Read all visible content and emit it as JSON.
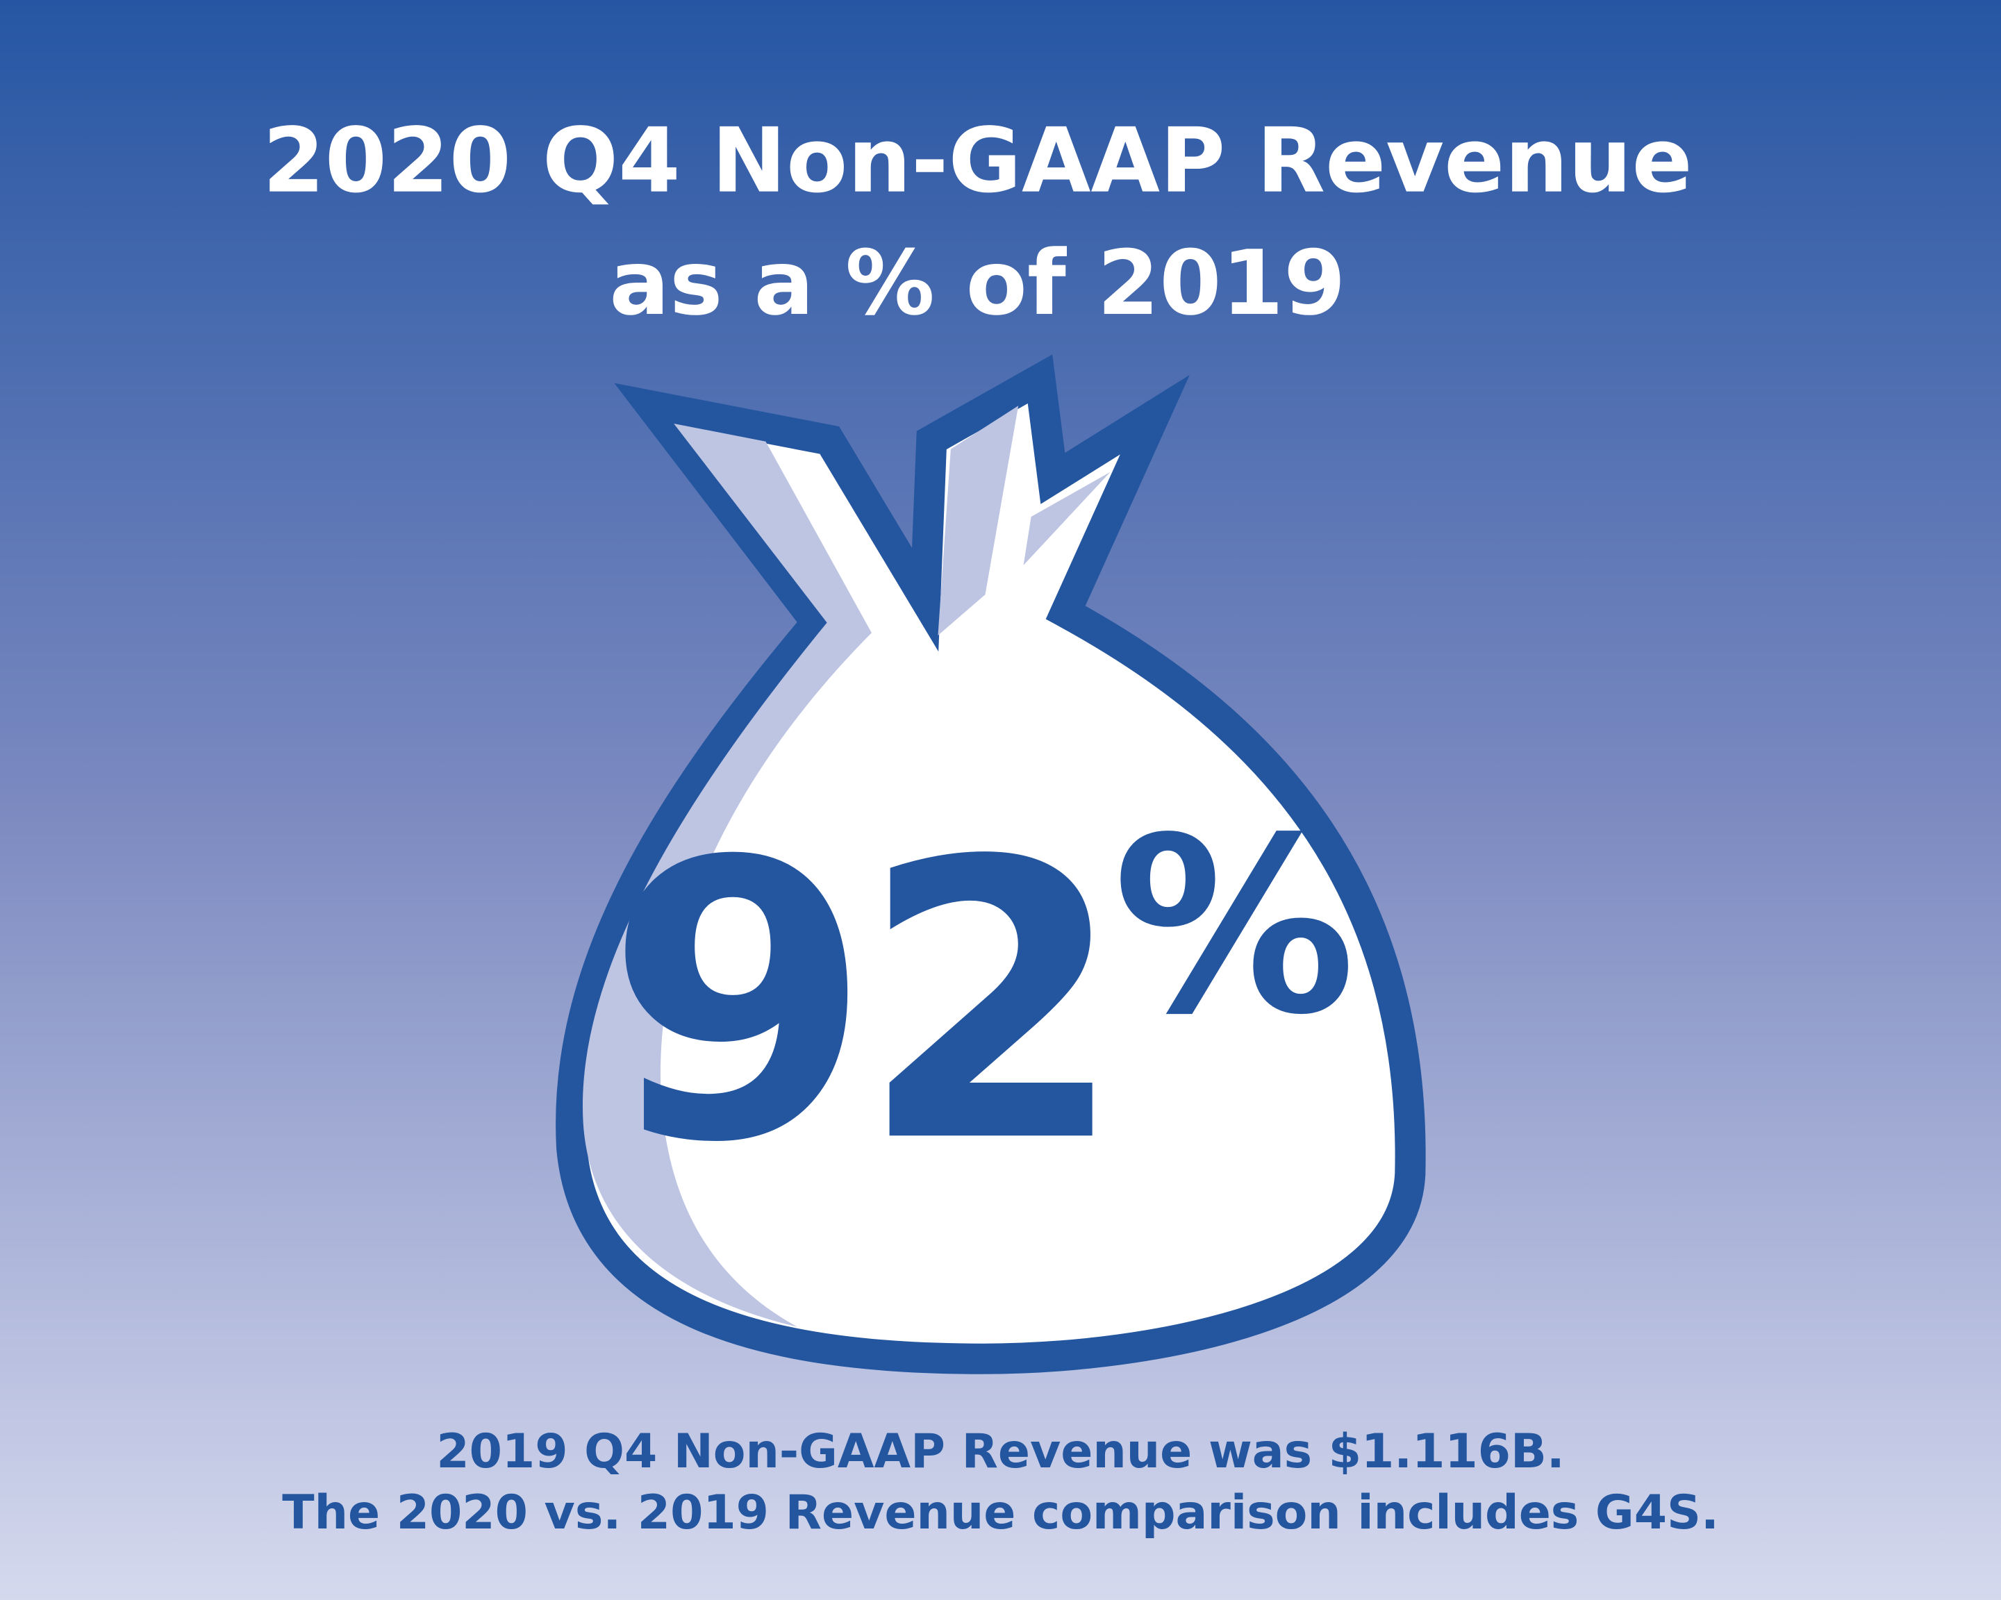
{
  "header": {
    "title": [
      "2020 Q4 Non-GAAP Revenue",
      "as a % of 2019"
    ]
  },
  "figure": {
    "number": "92",
    "unit": "%"
  },
  "footnote": [
    "2019 Q4 Non-GAAP Revenue was $1.116B.",
    "The 2020 vs. 2019 Revenue comparison includes G4S."
  ]
}
